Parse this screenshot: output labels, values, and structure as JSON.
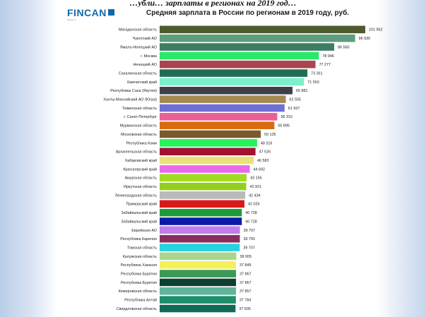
{
  "caption": "…убли… зарплаты в регионах на 2019 год…",
  "logo": {
    "text": "FINCAN",
    "tagline": "finance.ru"
  },
  "chart_data": {
    "type": "bar",
    "orientation": "horizontal",
    "title": "Средняя зарплата в России по регионам в 2019 году, руб.",
    "grid": false,
    "legend": "none",
    "xlim": [
      0,
      103000
    ],
    "categories": [
      "Магаданская область",
      "Чукотский АО",
      "Ямало-Ненецкий АО",
      "г. Москва",
      "Ненецкий АО",
      "Сахалинская область",
      "Камчатский край",
      "Республика Саха (Якутия)",
      "Ханты-Мансийский АО (Югра)",
      "Тюменская область",
      "г. Санкт-Петербург",
      "Мурманская область",
      "Московская область",
      "Республика Коми",
      "Архангельская область",
      "Хабаровский край",
      "Красноярский край",
      "Амурская область",
      "Иркутская область",
      "Ленинградская область",
      "Приморский край",
      "Забайкальский край",
      "Забайкальский край",
      "Еврейская АО",
      "Республика Карелия",
      "Томская область",
      "Калужская область",
      "Республика Хакасия",
      "Республика Бурятия",
      "Республика Бурятия",
      "Кемеровская область",
      "Республика Алтай",
      "Свердловская область"
    ],
    "values": [
      101962,
      96930,
      86560,
      78946,
      77277,
      73261,
      71553,
      65881,
      62555,
      61937,
      58310,
      56895,
      50135,
      48316,
      47526,
      46583,
      44692,
      43156,
      42921,
      42434,
      42026,
      40728,
      40728,
      39797,
      39755,
      39707,
      38005,
      37849,
      37867,
      37867,
      37857,
      37784,
      37605
    ],
    "value_labels": [
      "101 962",
      "96 930",
      "86 560",
      "78 946",
      "77 277",
      "73 261",
      "71 553",
      "65 881",
      "62 555",
      "61 937",
      "58 310",
      "56 895",
      "50 135",
      "48 316",
      "47 526",
      "46 583",
      "44 692",
      "43 156",
      "42 921",
      "42 434",
      "42 026",
      "40 728",
      "40 728",
      "39 797",
      "39 755",
      "39 707",
      "38 005",
      "37 849",
      "37 867",
      "37 867",
      "37 857",
      "37 784",
      "37 605"
    ],
    "colors": [
      "#4f5a2f",
      "#5c9e7e",
      "#3d7d63",
      "#2be86a",
      "#a8454d",
      "#1f6e54",
      "#7cf0c8",
      "#3e3f4a",
      "#a48a52",
      "#6e6fd6",
      "#ec5f94",
      "#d86b0c",
      "#7a5a2a",
      "#26f25c",
      "#a01232",
      "#ece07a",
      "#e86ae9",
      "#a2dc22",
      "#92cf1e",
      "#b9b9b9",
      "#d81a1a",
      "#1f9a3a",
      "#0a1aa8",
      "#c07ee8",
      "#8a2c5e",
      "#27d2df",
      "#a9d68a",
      "#f4f05c",
      "#3a9a56",
      "#0d3f2e",
      "#62b59a",
      "#1e8f6a",
      "#0f6b56"
    ]
  }
}
